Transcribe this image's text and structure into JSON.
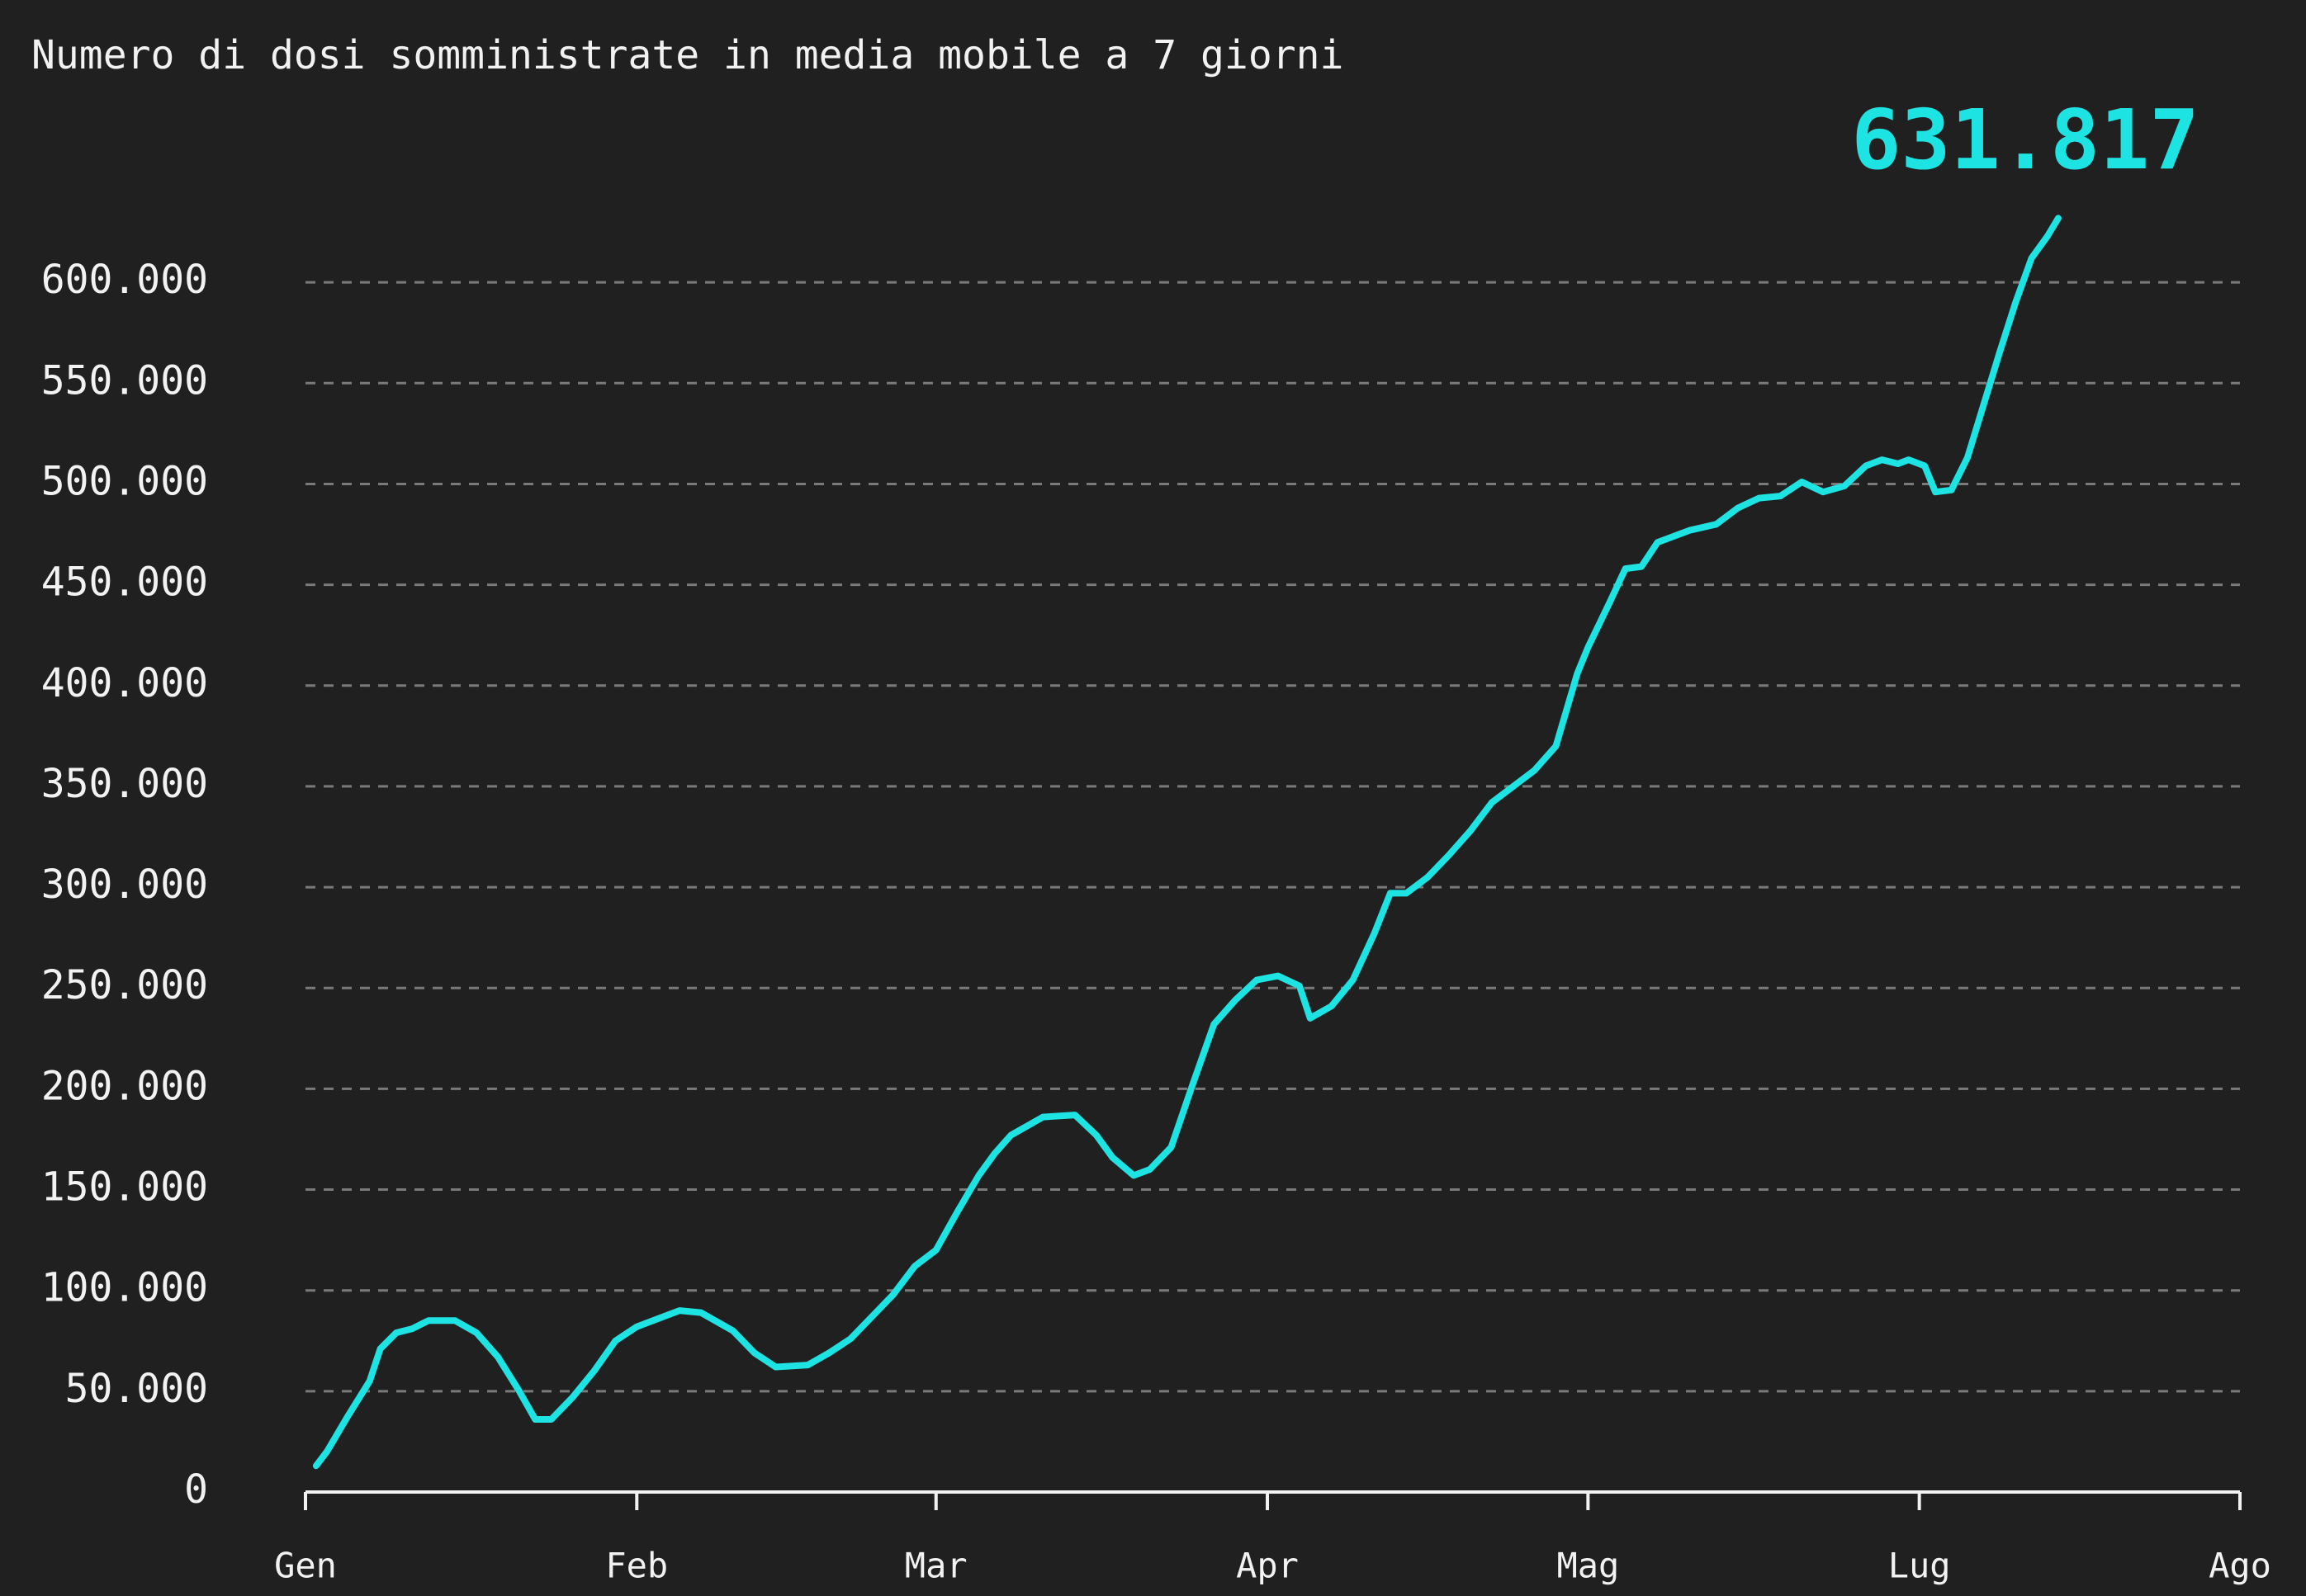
{
  "chart_data": {
    "type": "line",
    "title": "Numero di dosi somministrate in media mobile a 7 giorni",
    "x": [
      1,
      2,
      4,
      6,
      7,
      8.5,
      10,
      11.5,
      14,
      16,
      18,
      20,
      21.5,
      23,
      25,
      27,
      29,
      31,
      33,
      35,
      37,
      40,
      42,
      44,
      47,
      49,
      51,
      53,
      55,
      57,
      59,
      61,
      63,
      64.5,
      66,
      69,
      72,
      74,
      75.5,
      77.5,
      79,
      81,
      83,
      85,
      87,
      89,
      91,
      93,
      94,
      96,
      98,
      100,
      101.5,
      103,
      105,
      107,
      109,
      111,
      113,
      115,
      117,
      119,
      120,
      122,
      123.5,
      125,
      126.5,
      128,
      129.5,
      132,
      134,
      136,
      138,
      140,
      142,
      144,
      146,
      147.5,
      149,
      150,
      151.5,
      152.5,
      154,
      155.5,
      157,
      158.5,
      160,
      161.5,
      163,
      164
    ],
    "series": [
      {
        "color": "#1ee3e3",
        "values": [
          13000,
          20000,
          38000,
          55000,
          71000,
          79000,
          81000,
          85000,
          85000,
          79000,
          67000,
          50000,
          36000,
          36000,
          47000,
          60000,
          75000,
          82000,
          86000,
          90000,
          89000,
          80000,
          69000,
          62000,
          63000,
          69000,
          76000,
          87000,
          98000,
          112000,
          120000,
          139000,
          157000,
          168000,
          177000,
          186000,
          187000,
          177000,
          166000,
          157000,
          160000,
          171000,
          202000,
          232000,
          244000,
          254000,
          256000,
          251000,
          235000,
          241000,
          254000,
          277000,
          297000,
          297000,
          305000,
          316000,
          328000,
          342000,
          350000,
          358000,
          370000,
          406000,
          419000,
          441000,
          458000,
          459000,
          471000,
          474000,
          477000,
          480000,
          488000,
          493000,
          494000,
          501000,
          496000,
          499000,
          509000,
          512000,
          510000,
          512000,
          509000,
          496000,
          497000,
          513000,
          539000,
          565000,
          590000,
          612000,
          623000,
          631817
        ],
        "value_labels": [
          null,
          null,
          null,
          null,
          null,
          null,
          null,
          null,
          null,
          null,
          null,
          null,
          null,
          null,
          null,
          null,
          null,
          null,
          null,
          null,
          null,
          null,
          null,
          null,
          null,
          null,
          null,
          null,
          null,
          null,
          null,
          null,
          null,
          null,
          null,
          null,
          null,
          null,
          null,
          null,
          null,
          null,
          null,
          null,
          null,
          null,
          null,
          null,
          null,
          null,
          null,
          null,
          null,
          null,
          null,
          null,
          null,
          null,
          null,
          null,
          null,
          null,
          null,
          null,
          null,
          null,
          null,
          null,
          null,
          null,
          null,
          null,
          null,
          null,
          null,
          null,
          null,
          null,
          null,
          null,
          null,
          null,
          null,
          null,
          null,
          null,
          null,
          null,
          null,
          "631.817"
        ]
      }
    ],
    "xlim": [
      0,
      181
    ],
    "xticks": [
      {
        "value": 0,
        "label": "Gen"
      },
      {
        "value": 31,
        "label": "Feb"
      },
      {
        "value": 59,
        "label": "Mar"
      },
      {
        "value": 90,
        "label": "Apr"
      },
      {
        "value": 120,
        "label": "Mag"
      },
      {
        "value": 151,
        "label": "Lug"
      },
      {
        "value": 181,
        "label": "Ago"
      }
    ],
    "ylim": [
      0,
      650000
    ],
    "yticks": [
      0,
      {
        "value": 50000,
        "label": "50.000"
      },
      {
        "value": 100000,
        "label": "100.000"
      },
      {
        "value": 150000,
        "label": "150.000"
      },
      {
        "value": 200000,
        "label": "200.000"
      },
      {
        "value": 250000,
        "label": "250.000"
      },
      {
        "value": 300000,
        "label": "300.000"
      },
      {
        "value": 350000,
        "label": "350.000"
      },
      {
        "value": 400000,
        "label": "400.000"
      },
      {
        "value": 450000,
        "label": "450.000"
      },
      {
        "value": 500000,
        "label": "500.000"
      },
      {
        "value": 550000,
        "label": "550.000"
      },
      {
        "value": 600000,
        "label": "600.000"
      }
    ],
    "grid": true
  }
}
